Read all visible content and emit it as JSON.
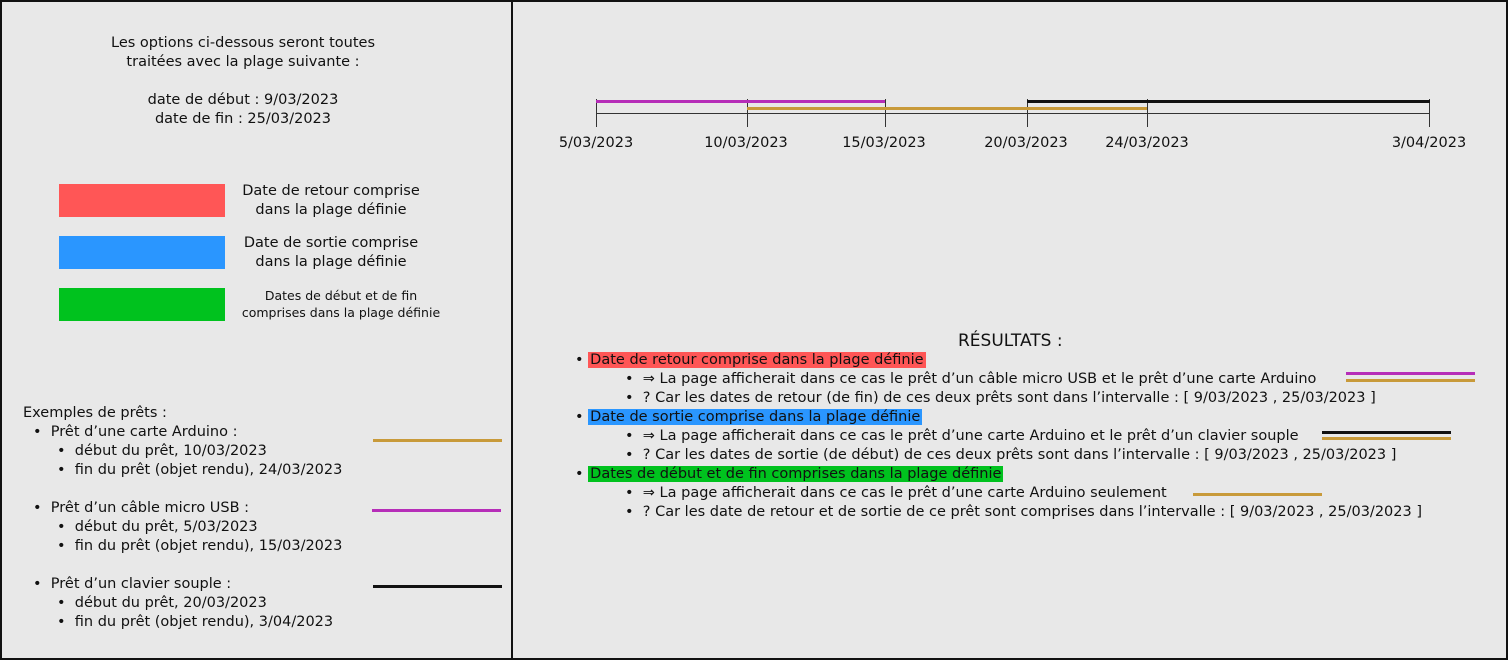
{
  "intro": {
    "line1": "Les options ci-dessous seront toutes",
    "line2": "traitées avec la plage suivante :",
    "start": "date de début : 9/03/2023",
    "end": "date de fin : 25/03/2023"
  },
  "legend": [
    {
      "line1": "Date de retour comprise",
      "line2": "dans la plage définie",
      "color": "#ff5656"
    },
    {
      "line1": "Date de sortie comprise",
      "line2": "dans la plage définie",
      "color": "#2a96ff"
    },
    {
      "line1": "Dates de début et de fin",
      "line2": "comprises dans la plage définie",
      "color": "#00c21e"
    }
  ],
  "examples": {
    "heading": "Exemples de prêts :",
    "loans": [
      {
        "title": "Prêt d’une carte Arduino :",
        "start": "début du prêt, 10/03/2023",
        "end": "fin du prêt (objet rendu), 24/03/2023",
        "color": "#c89a3a"
      },
      {
        "title": "Prêt d’un câble micro USB :",
        "start": "début du prêt, 5/03/2023",
        "end": "fin du prêt (objet rendu), 15/03/2023",
        "color": "#b62db8"
      },
      {
        "title": "Prêt d’un clavier souple :",
        "start": "début du prêt, 20/03/2023",
        "end": "fin du prêt (objet rendu), 3/04/2023",
        "color": "#111111"
      }
    ]
  },
  "timeline": {
    "ticks": [
      "5/03/2023",
      "10/03/2023",
      "15/03/2023",
      "20/03/2023",
      "24/03/2023",
      "3/04/2023"
    ]
  },
  "results": {
    "title": "RÉSULTATS :",
    "items": [
      {
        "label": "Date de retour comprise dans la plage définie",
        "color": "#ff5656",
        "sub1": "⇒ La page afficherait dans ce cas le prêt d’un câble micro USB et le prêt d’une carte Arduino",
        "sub2": "?  Car les dates de retour (de fin) de ces deux prêts sont dans l’intervalle : [ 9/03/2023 , 25/03/2023 ]"
      },
      {
        "label": "Date de sortie comprise dans la plage définie",
        "color": "#2a96ff",
        "sub1": "⇒ La page afficherait dans ce cas le prêt d’une carte Arduino et le prêt d’un clavier souple",
        "sub2": "?  Car les dates de sortie (de début) de ces deux prêts sont dans l’intervalle : [ 9/03/2023 , 25/03/2023 ]"
      },
      {
        "label": "Dates de début et de fin comprises dans la plage définie",
        "color": "#00c21e",
        "sub1": "⇒ La page afficherait dans ce cas le prêt d’une carte Arduino seulement",
        "sub2": "?  Car les date de retour et de sortie de ce prêt sont comprises dans l’intervalle : [ 9/03/2023 , 25/03/2023 ]"
      }
    ]
  }
}
